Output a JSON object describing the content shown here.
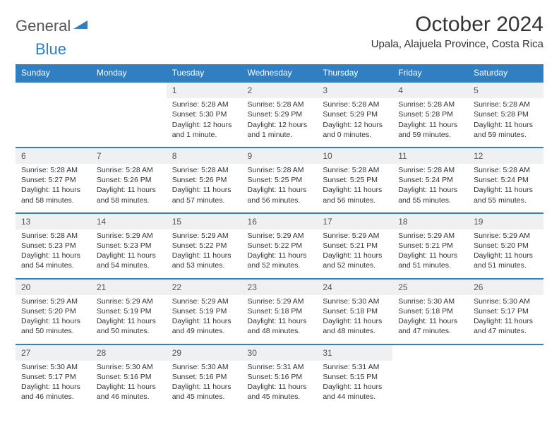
{
  "logo": {
    "word1": "General",
    "word2": "Blue"
  },
  "title": "October 2024",
  "location": "Upala, Alajuela Province, Costa Rica",
  "colors": {
    "header_bg": "#2f7fc2",
    "header_fg": "#ffffff",
    "daynum_bg": "#eef0f1",
    "row_border": "#2f7fc2",
    "page_bg": "#ffffff",
    "text": "#333333"
  },
  "day_headers": [
    "Sunday",
    "Monday",
    "Tuesday",
    "Wednesday",
    "Thursday",
    "Friday",
    "Saturday"
  ],
  "weeks": [
    [
      null,
      null,
      {
        "n": "1",
        "sr": "5:28 AM",
        "ss": "5:30 PM",
        "dl": "12 hours and 1 minute."
      },
      {
        "n": "2",
        "sr": "5:28 AM",
        "ss": "5:29 PM",
        "dl": "12 hours and 1 minute."
      },
      {
        "n": "3",
        "sr": "5:28 AM",
        "ss": "5:29 PM",
        "dl": "12 hours and 0 minutes."
      },
      {
        "n": "4",
        "sr": "5:28 AM",
        "ss": "5:28 PM",
        "dl": "11 hours and 59 minutes."
      },
      {
        "n": "5",
        "sr": "5:28 AM",
        "ss": "5:28 PM",
        "dl": "11 hours and 59 minutes."
      }
    ],
    [
      {
        "n": "6",
        "sr": "5:28 AM",
        "ss": "5:27 PM",
        "dl": "11 hours and 58 minutes."
      },
      {
        "n": "7",
        "sr": "5:28 AM",
        "ss": "5:26 PM",
        "dl": "11 hours and 58 minutes."
      },
      {
        "n": "8",
        "sr": "5:28 AM",
        "ss": "5:26 PM",
        "dl": "11 hours and 57 minutes."
      },
      {
        "n": "9",
        "sr": "5:28 AM",
        "ss": "5:25 PM",
        "dl": "11 hours and 56 minutes."
      },
      {
        "n": "10",
        "sr": "5:28 AM",
        "ss": "5:25 PM",
        "dl": "11 hours and 56 minutes."
      },
      {
        "n": "11",
        "sr": "5:28 AM",
        "ss": "5:24 PM",
        "dl": "11 hours and 55 minutes."
      },
      {
        "n": "12",
        "sr": "5:28 AM",
        "ss": "5:24 PM",
        "dl": "11 hours and 55 minutes."
      }
    ],
    [
      {
        "n": "13",
        "sr": "5:28 AM",
        "ss": "5:23 PM",
        "dl": "11 hours and 54 minutes."
      },
      {
        "n": "14",
        "sr": "5:29 AM",
        "ss": "5:23 PM",
        "dl": "11 hours and 54 minutes."
      },
      {
        "n": "15",
        "sr": "5:29 AM",
        "ss": "5:22 PM",
        "dl": "11 hours and 53 minutes."
      },
      {
        "n": "16",
        "sr": "5:29 AM",
        "ss": "5:22 PM",
        "dl": "11 hours and 52 minutes."
      },
      {
        "n": "17",
        "sr": "5:29 AM",
        "ss": "5:21 PM",
        "dl": "11 hours and 52 minutes."
      },
      {
        "n": "18",
        "sr": "5:29 AM",
        "ss": "5:21 PM",
        "dl": "11 hours and 51 minutes."
      },
      {
        "n": "19",
        "sr": "5:29 AM",
        "ss": "5:20 PM",
        "dl": "11 hours and 51 minutes."
      }
    ],
    [
      {
        "n": "20",
        "sr": "5:29 AM",
        "ss": "5:20 PM",
        "dl": "11 hours and 50 minutes."
      },
      {
        "n": "21",
        "sr": "5:29 AM",
        "ss": "5:19 PM",
        "dl": "11 hours and 50 minutes."
      },
      {
        "n": "22",
        "sr": "5:29 AM",
        "ss": "5:19 PM",
        "dl": "11 hours and 49 minutes."
      },
      {
        "n": "23",
        "sr": "5:29 AM",
        "ss": "5:18 PM",
        "dl": "11 hours and 48 minutes."
      },
      {
        "n": "24",
        "sr": "5:30 AM",
        "ss": "5:18 PM",
        "dl": "11 hours and 48 minutes."
      },
      {
        "n": "25",
        "sr": "5:30 AM",
        "ss": "5:18 PM",
        "dl": "11 hours and 47 minutes."
      },
      {
        "n": "26",
        "sr": "5:30 AM",
        "ss": "5:17 PM",
        "dl": "11 hours and 47 minutes."
      }
    ],
    [
      {
        "n": "27",
        "sr": "5:30 AM",
        "ss": "5:17 PM",
        "dl": "11 hours and 46 minutes."
      },
      {
        "n": "28",
        "sr": "5:30 AM",
        "ss": "5:16 PM",
        "dl": "11 hours and 46 minutes."
      },
      {
        "n": "29",
        "sr": "5:30 AM",
        "ss": "5:16 PM",
        "dl": "11 hours and 45 minutes."
      },
      {
        "n": "30",
        "sr": "5:31 AM",
        "ss": "5:16 PM",
        "dl": "11 hours and 45 minutes."
      },
      {
        "n": "31",
        "sr": "5:31 AM",
        "ss": "5:15 PM",
        "dl": "11 hours and 44 minutes."
      },
      null,
      null
    ]
  ],
  "labels": {
    "sunrise": "Sunrise: ",
    "sunset": "Sunset: ",
    "daylight": "Daylight: "
  }
}
